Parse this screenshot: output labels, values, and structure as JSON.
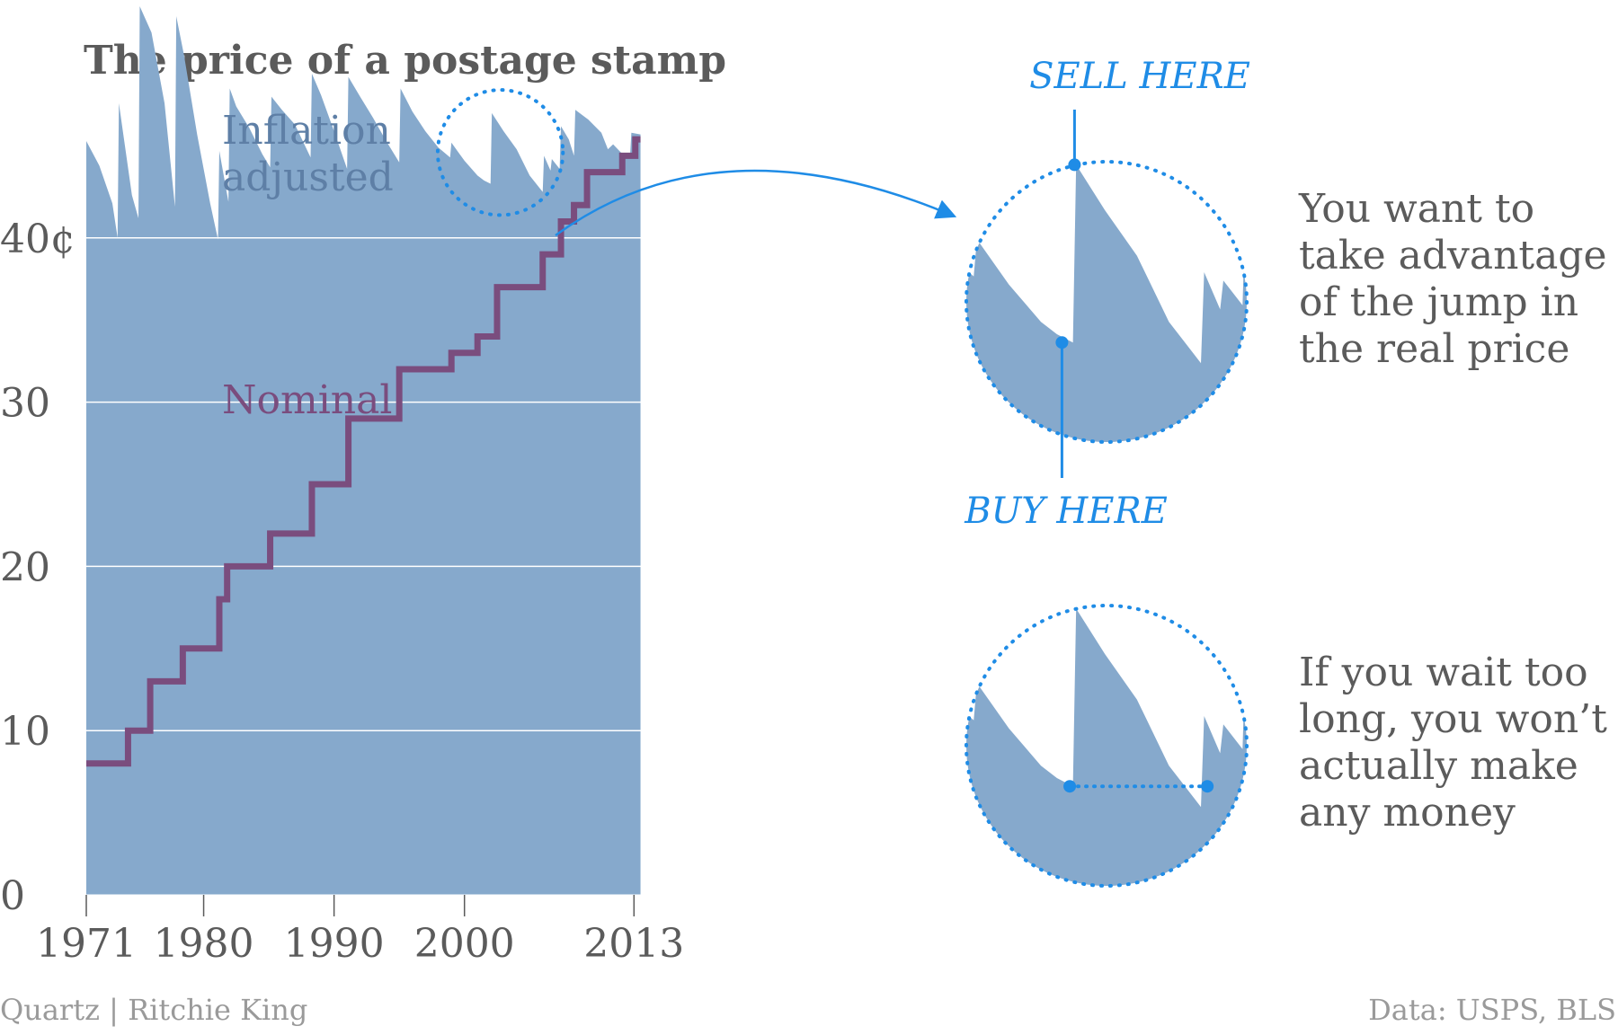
{
  "chart_data": {
    "type": "area",
    "title": "The price of a postage stamp",
    "xlabel": "",
    "ylabel": "",
    "ylim": [
      0,
      50
    ],
    "xlim": [
      1971,
      2013.6
    ],
    "x_ticks": [
      "1971",
      "1980",
      "1990",
      "2000",
      "2013"
    ],
    "y_ticks": [
      {
        "value": 0,
        "label": "0"
      },
      {
        "value": 10,
        "label": "10"
      },
      {
        "value": 20,
        "label": "20"
      },
      {
        "value": 30,
        "label": "30"
      },
      {
        "value": 40,
        "label": "40¢"
      }
    ],
    "grid": true,
    "series": [
      {
        "name": "Inflation adjusted",
        "type": "area",
        "color": "#86a9cc",
        "points": [
          [
            1971.0,
            45.9
          ],
          [
            1972.0,
            44.4
          ],
          [
            1973.0,
            42.1
          ],
          [
            1973.4,
            40.0
          ],
          [
            1973.5,
            48.2
          ],
          [
            1974.5,
            42.6
          ],
          [
            1975.0,
            41.2
          ],
          [
            1975.1,
            54.1
          ],
          [
            1976.0,
            52.5
          ],
          [
            1977.0,
            48.2
          ],
          [
            1977.8,
            41.9
          ],
          [
            1977.9,
            53.5
          ],
          [
            1978.5,
            51.1
          ],
          [
            1979.5,
            46.3
          ],
          [
            1980.5,
            42.1
          ],
          [
            1981.1,
            39.9
          ],
          [
            1981.2,
            45.3
          ],
          [
            1981.9,
            42.2
          ],
          [
            1982.0,
            49.1
          ],
          [
            1982.5,
            48.0
          ],
          [
            1983.5,
            46.7
          ],
          [
            1984.5,
            45.1
          ],
          [
            1985.1,
            44.3
          ],
          [
            1985.2,
            48.6
          ],
          [
            1986.0,
            47.8
          ],
          [
            1987.0,
            46.9
          ],
          [
            1988.2,
            44.9
          ],
          [
            1988.3,
            50.0
          ],
          [
            1989.0,
            48.7
          ],
          [
            1990.0,
            46.5
          ],
          [
            1991.0,
            44.2
          ],
          [
            1991.1,
            49.8
          ],
          [
            1992.0,
            48.6
          ],
          [
            1993.0,
            47.3
          ],
          [
            1994.0,
            45.9
          ],
          [
            1995.0,
            44.6
          ],
          [
            1995.1,
            49.1
          ],
          [
            1996.0,
            47.7
          ],
          [
            1997.0,
            46.5
          ],
          [
            1998.0,
            45.5
          ],
          [
            1998.9,
            44.9
          ],
          [
            1999.0,
            45.8
          ],
          [
            2000.0,
            44.7
          ],
          [
            2001.0,
            43.8
          ],
          [
            2001.5,
            43.5
          ],
          [
            2002.0,
            43.3
          ],
          [
            2002.1,
            47.6
          ],
          [
            2003.0,
            46.5
          ],
          [
            2004.0,
            45.4
          ],
          [
            2005.0,
            43.8
          ],
          [
            2006.0,
            42.8
          ],
          [
            2006.1,
            45.0
          ],
          [
            2006.6,
            44.1
          ],
          [
            2006.7,
            44.8
          ],
          [
            2007.3,
            44.2
          ],
          [
            2007.4,
            46.8
          ],
          [
            2008.0,
            46.0
          ],
          [
            2008.4,
            45.0
          ],
          [
            2008.5,
            47.8
          ],
          [
            2009.5,
            47.2
          ],
          [
            2010.5,
            46.4
          ],
          [
            2011.0,
            45.4
          ],
          [
            2011.4,
            45.7
          ],
          [
            2012.0,
            45.2
          ],
          [
            2012.7,
            45.0
          ],
          [
            2012.8,
            46.4
          ],
          [
            2013.5,
            46.3
          ]
        ]
      },
      {
        "name": "Nominal",
        "type": "step",
        "color": "#7a4d7e",
        "points": [
          [
            1971.0,
            8
          ],
          [
            1974.2,
            10
          ],
          [
            1975.9,
            13
          ],
          [
            1978.4,
            15
          ],
          [
            1981.2,
            18
          ],
          [
            1981.8,
            20
          ],
          [
            1985.1,
            22
          ],
          [
            1988.3,
            25
          ],
          [
            1991.1,
            29
          ],
          [
            1995.0,
            32
          ],
          [
            1999.0,
            33
          ],
          [
            2001.0,
            34
          ],
          [
            2002.5,
            37
          ],
          [
            2006.0,
            39
          ],
          [
            2007.4,
            41
          ],
          [
            2008.4,
            42
          ],
          [
            2009.4,
            44
          ],
          [
            2012.1,
            45
          ],
          [
            2013.1,
            46
          ],
          [
            2013.5,
            46
          ]
        ]
      }
    ]
  },
  "annotations": {
    "sell_here": "SELL HERE",
    "buy_here": "BUY HERE",
    "note_top_lines": [
      "You want to",
      "take advantage",
      "of the jump in",
      "the real price"
    ],
    "note_bottom_lines": [
      "If you wait too",
      "long, you won’t",
      "actually make",
      "any money"
    ],
    "zoom_highlight_range": [
      1998.5,
      2007
    ]
  },
  "footer": {
    "credit": "Quartz | Ritchie King",
    "source": "Data: USPS, BLS"
  },
  "colors": {
    "area_fill": "#86a9cc",
    "nominal_line": "#7a4d7e",
    "inflation_label": "#5e7fa6",
    "accent": "#1f8ce6",
    "text": "#5b5b5b",
    "muted": "#9a9a9a"
  }
}
